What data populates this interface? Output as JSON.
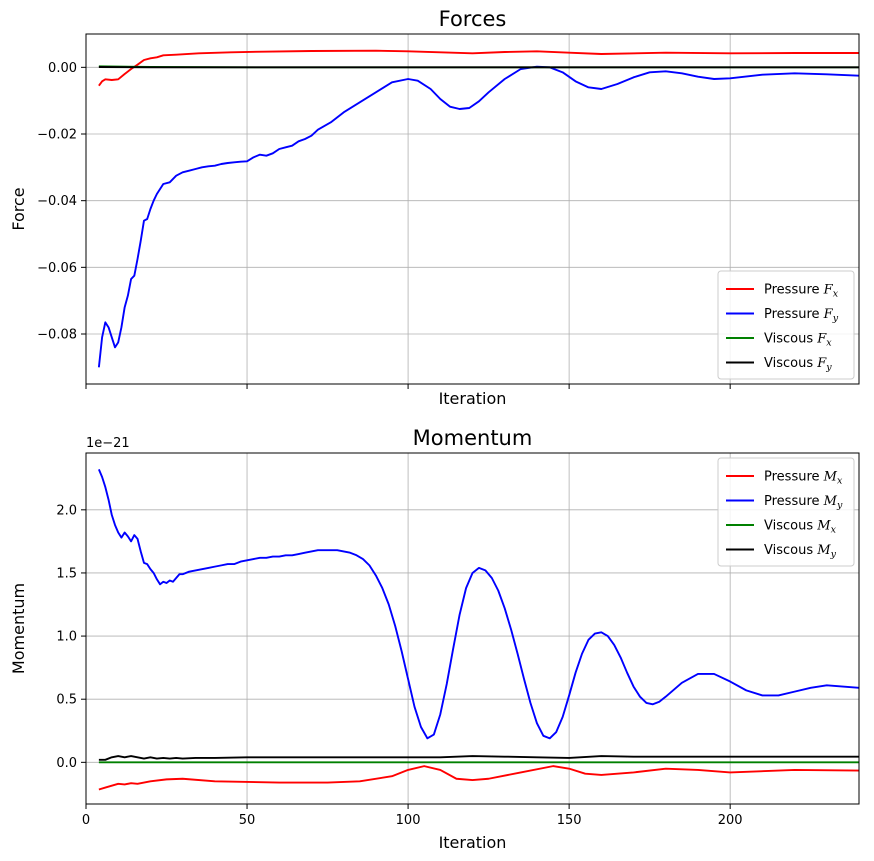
{
  "chart_data": [
    {
      "type": "line",
      "title": "Forces",
      "xlabel": "Iteration",
      "ylabel": "Force",
      "xlim": [
        0,
        240
      ],
      "ylim": [
        -0.095,
        0.01
      ],
      "x_ticks": [
        0,
        50,
        100,
        150,
        200
      ],
      "x_tick_labels_shown": false,
      "y_ticks": [
        -0.08,
        -0.06,
        -0.04,
        -0.02,
        0.0
      ],
      "y_tick_labels": [
        "−0.08",
        "−0.06",
        "−0.04",
        "−0.02",
        "0.00"
      ],
      "grid": true,
      "legend_position": "lower-right",
      "series": [
        {
          "name": "Pressure F_x",
          "color": "#ff0000",
          "x": [
            4,
            5,
            6,
            8,
            10,
            12,
            14,
            16,
            18,
            20,
            22,
            24,
            28,
            35,
            45,
            55,
            70,
            90,
            100,
            110,
            120,
            130,
            140,
            150,
            160,
            180,
            200,
            220,
            240
          ],
          "y": [
            -0.0055,
            -0.0042,
            -0.0036,
            -0.0038,
            -0.0036,
            -0.002,
            -0.0005,
            0.0008,
            0.0022,
            0.0027,
            0.003,
            0.0036,
            0.0038,
            0.0042,
            0.0045,
            0.0047,
            0.0049,
            0.005,
            0.0048,
            0.0045,
            0.0042,
            0.0046,
            0.0048,
            0.0044,
            0.004,
            0.0044,
            0.0042,
            0.0043,
            0.0043
          ]
        },
        {
          "name": "Pressure F_y",
          "color": "#0000ff",
          "x": [
            4,
            5,
            6,
            7,
            8,
            9,
            10,
            11,
            12,
            13,
            14,
            15,
            16,
            17,
            18,
            19,
            20,
            21,
            22,
            24,
            26,
            28,
            30,
            32,
            34,
            36,
            38,
            40,
            42,
            44,
            46,
            48,
            50,
            52,
            54,
            56,
            58,
            60,
            62,
            64,
            66,
            68,
            70,
            72,
            76,
            80,
            85,
            90,
            95,
            100,
            103,
            107,
            110,
            113,
            116,
            119,
            122,
            125,
            130,
            135,
            140,
            144,
            148,
            152,
            156,
            160,
            165,
            170,
            175,
            180,
            185,
            190,
            195,
            200,
            210,
            220,
            230,
            240
          ],
          "y": [
            -0.09,
            -0.081,
            -0.0765,
            -0.078,
            -0.081,
            -0.084,
            -0.0825,
            -0.078,
            -0.072,
            -0.0685,
            -0.0635,
            -0.0625,
            -0.0575,
            -0.052,
            -0.046,
            -0.0455,
            -0.0425,
            -0.04,
            -0.038,
            -0.035,
            -0.0345,
            -0.0325,
            -0.0315,
            -0.031,
            -0.0305,
            -0.03,
            -0.0297,
            -0.0295,
            -0.029,
            -0.0287,
            -0.0285,
            -0.0283,
            -0.0282,
            -0.027,
            -0.0262,
            -0.0265,
            -0.0258,
            -0.0245,
            -0.024,
            -0.0235,
            -0.0222,
            -0.0215,
            -0.0205,
            -0.0187,
            -0.0165,
            -0.0135,
            -0.0105,
            -0.0075,
            -0.0045,
            -0.0035,
            -0.004,
            -0.0065,
            -0.0095,
            -0.0118,
            -0.0125,
            -0.0122,
            -0.0102,
            -0.0075,
            -0.0035,
            -0.0005,
            0.0002,
            0.0,
            -0.0015,
            -0.0042,
            -0.006,
            -0.0065,
            -0.005,
            -0.003,
            -0.0015,
            -0.0012,
            -0.0018,
            -0.0028,
            -0.0035,
            -0.0033,
            -0.0022,
            -0.0018,
            -0.0021,
            -0.0025
          ]
        },
        {
          "name": "Viscous F_x",
          "color": "#008000",
          "x": [
            4,
            20,
            60,
            100,
            140,
            180,
            220,
            240
          ],
          "y": [
            0.0003,
            0.0001,
            0.0,
            0.0,
            0.0,
            0.0,
            0.0,
            0.0
          ]
        },
        {
          "name": "Viscous F_y",
          "color": "#000000",
          "x": [
            4,
            20,
            60,
            100,
            140,
            180,
            220,
            240
          ],
          "y": [
            0.0001,
            0.0,
            0.0,
            0.0,
            0.0,
            0.0,
            0.0,
            0.0
          ]
        }
      ],
      "legend_labels": [
        {
          "text": "Pressure ",
          "sym": "F",
          "sub": "x"
        },
        {
          "text": "Pressure ",
          "sym": "F",
          "sub": "y"
        },
        {
          "text": "Viscous ",
          "sym": "F",
          "sub": "x"
        },
        {
          "text": "Viscous ",
          "sym": "F",
          "sub": "y"
        }
      ]
    },
    {
      "type": "line",
      "title": "Momentum",
      "xlabel": "Iteration",
      "ylabel": "Momentum",
      "offset_text": "1e−21",
      "xlim": [
        0,
        240
      ],
      "ylim": [
        -0.33,
        2.45
      ],
      "x_ticks": [
        0,
        50,
        100,
        150,
        200
      ],
      "x_tick_labels": [
        "0",
        "50",
        "100",
        "150",
        "200"
      ],
      "y_ticks": [
        0.0,
        0.5,
        1.0,
        1.5,
        2.0
      ],
      "y_tick_labels": [
        "0.0",
        "0.5",
        "1.0",
        "1.5",
        "2.0"
      ],
      "grid": true,
      "legend_position": "upper-right",
      "series": [
        {
          "name": "Pressure M_x",
          "color": "#ff0000",
          "x": [
            4,
            6,
            8,
            10,
            12,
            14,
            16,
            18,
            20,
            25,
            30,
            40,
            60,
            75,
            85,
            95,
            100,
            105,
            110,
            115,
            120,
            125,
            135,
            145,
            150,
            155,
            160,
            170,
            180,
            190,
            200,
            220,
            240
          ],
          "y": [
            -0.215,
            -0.2,
            -0.185,
            -0.17,
            -0.175,
            -0.165,
            -0.17,
            -0.16,
            -0.15,
            -0.135,
            -0.13,
            -0.15,
            -0.16,
            -0.16,
            -0.15,
            -0.11,
            -0.06,
            -0.03,
            -0.06,
            -0.13,
            -0.14,
            -0.13,
            -0.08,
            -0.03,
            -0.05,
            -0.09,
            -0.1,
            -0.08,
            -0.05,
            -0.06,
            -0.08,
            -0.06,
            -0.065
          ]
        },
        {
          "name": "Pressure M_y",
          "color": "#0000ff",
          "x": [
            4,
            5,
            6,
            7,
            8,
            9,
            10,
            11,
            12,
            13,
            14,
            15,
            16,
            17,
            18,
            19,
            20,
            21,
            22,
            23,
            24,
            25,
            26,
            27,
            28,
            29,
            30,
            32,
            34,
            36,
            38,
            40,
            42,
            44,
            46,
            48,
            50,
            52,
            54,
            56,
            58,
            60,
            62,
            64,
            66,
            68,
            70,
            72,
            74,
            76,
            78,
            80,
            82,
            84,
            86,
            88,
            90,
            92,
            94,
            96,
            98,
            100,
            102,
            104,
            106,
            108,
            110,
            112,
            114,
            116,
            118,
            120,
            122,
            124,
            126,
            128,
            130,
            132,
            134,
            136,
            138,
            140,
            142,
            144,
            146,
            148,
            150,
            152,
            154,
            156,
            158,
            160,
            162,
            164,
            166,
            168,
            170,
            172,
            174,
            176,
            178,
            180,
            185,
            190,
            195,
            200,
            205,
            210,
            215,
            220,
            225,
            230,
            235,
            240
          ],
          "y": [
            2.32,
            2.26,
            2.18,
            2.08,
            1.96,
            1.88,
            1.82,
            1.78,
            1.82,
            1.79,
            1.75,
            1.8,
            1.77,
            1.67,
            1.58,
            1.57,
            1.53,
            1.5,
            1.45,
            1.41,
            1.43,
            1.42,
            1.44,
            1.43,
            1.46,
            1.49,
            1.49,
            1.51,
            1.52,
            1.53,
            1.54,
            1.55,
            1.56,
            1.57,
            1.57,
            1.59,
            1.6,
            1.61,
            1.62,
            1.62,
            1.63,
            1.63,
            1.64,
            1.64,
            1.65,
            1.66,
            1.67,
            1.68,
            1.68,
            1.68,
            1.68,
            1.67,
            1.66,
            1.64,
            1.61,
            1.56,
            1.48,
            1.38,
            1.25,
            1.08,
            0.88,
            0.66,
            0.44,
            0.28,
            0.19,
            0.22,
            0.38,
            0.62,
            0.9,
            1.17,
            1.38,
            1.5,
            1.54,
            1.52,
            1.46,
            1.36,
            1.22,
            1.05,
            0.86,
            0.66,
            0.47,
            0.31,
            0.21,
            0.19,
            0.24,
            0.36,
            0.53,
            0.71,
            0.86,
            0.97,
            1.02,
            1.03,
            1.0,
            0.93,
            0.83,
            0.71,
            0.6,
            0.52,
            0.47,
            0.46,
            0.48,
            0.52,
            0.63,
            0.7,
            0.7,
            0.64,
            0.57,
            0.53,
            0.53,
            0.56,
            0.59,
            0.61,
            0.6,
            0.59
          ]
        },
        {
          "name": "Viscous M_x",
          "color": "#008000",
          "x": [
            4,
            40,
            80,
            120,
            160,
            200,
            240
          ],
          "y": [
            0.0,
            0.0,
            0.0,
            0.0,
            0.0,
            0.0,
            0.0
          ]
        },
        {
          "name": "Viscous M_y",
          "color": "#000000",
          "x": [
            4,
            6,
            8,
            10,
            12,
            14,
            16,
            18,
            20,
            22,
            24,
            26,
            28,
            30,
            34,
            40,
            50,
            60,
            70,
            80,
            90,
            100,
            110,
            120,
            130,
            140,
            150,
            160,
            170,
            180,
            200,
            220,
            240
          ],
          "y": [
            0.02,
            0.02,
            0.04,
            0.05,
            0.04,
            0.05,
            0.04,
            0.03,
            0.04,
            0.03,
            0.035,
            0.03,
            0.035,
            0.03,
            0.035,
            0.035,
            0.04,
            0.04,
            0.04,
            0.04,
            0.04,
            0.04,
            0.04,
            0.05,
            0.045,
            0.04,
            0.035,
            0.05,
            0.045,
            0.045,
            0.045,
            0.045,
            0.045
          ]
        }
      ],
      "legend_labels": [
        {
          "text": "Pressure ",
          "sym": "M",
          "sub": "x"
        },
        {
          "text": "Pressure ",
          "sym": "M",
          "sub": "y"
        },
        {
          "text": "Viscous ",
          "sym": "M",
          "sub": "x"
        },
        {
          "text": "Viscous ",
          "sym": "M",
          "sub": "y"
        }
      ]
    }
  ]
}
